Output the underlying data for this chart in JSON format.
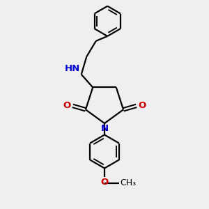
{
  "bg_color": "#efefef",
  "bond_color": "#000000",
  "N_color": "#0000cc",
  "O_color": "#cc0000",
  "line_width": 1.6,
  "font_size_atom": 9.5,
  "xlim": [
    0,
    10
  ],
  "ylim": [
    0,
    10
  ]
}
